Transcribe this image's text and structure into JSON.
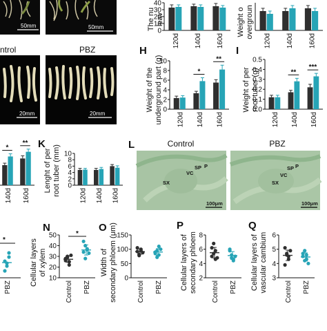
{
  "photos": {
    "top_scale_left": "50mm",
    "top_scale_right": "50mm",
    "left_label": "ntrol",
    "right_label": "PBZ",
    "bottom_scale_left": "20mm",
    "bottom_scale_right": "20mm"
  },
  "panels": {
    "top_left_chart": {
      "ylabel": [
        "The nu",
        "leav"
      ],
      "yticks": [
        "0",
        "10",
        "20",
        "30",
        "40"
      ],
      "xticks": [
        "120d",
        "140d",
        "160d"
      ]
    },
    "top_right_chart": {
      "ylabel": [
        "Weight o",
        "overgroun"
      ],
      "xticks": [
        "120d",
        "140d",
        "160d"
      ]
    },
    "H": {
      "letter": "H",
      "ylabel": [
        "Weight of the",
        "underground part (g)"
      ],
      "yticks": [
        "0",
        "2",
        "4",
        "6",
        "8",
        "10"
      ],
      "xticks": [
        "120d",
        "140d",
        "160d"
      ],
      "sig": [
        "*",
        "**"
      ]
    },
    "I": {
      "letter": "I",
      "ylabel": [
        "Weight of per",
        "root tuber (g)"
      ],
      "yticks": [
        "0.0",
        "0.1",
        "0.2",
        "0.3",
        "0.4",
        "0.5"
      ],
      "xticks": [
        "120d",
        "140d",
        "160d"
      ],
      "sig": [
        "**",
        "***"
      ]
    },
    "J_partial": {
      "xticks": [
        "140d",
        "160d"
      ],
      "sig": [
        "*",
        "**"
      ]
    },
    "K": {
      "letter": "K",
      "ylabel": [
        "Lenght of per",
        "root tuber (mm)"
      ],
      "yticks": [
        "0",
        "2",
        "4",
        "6",
        "8",
        "10"
      ],
      "xticks": [
        "120d",
        "140d",
        "160d"
      ]
    },
    "L": {
      "letter": "L",
      "left_title": "Control",
      "right_title": "PBZ",
      "labels_left": [
        "SX",
        "VC",
        "SP",
        "P"
      ],
      "labels_right": [
        "SX",
        "VC",
        "SP",
        "P"
      ],
      "scale_left": "100μm",
      "scale_right": "100μm"
    },
    "M_partial": {
      "sig": "*",
      "xtick": "PBZ"
    },
    "N": {
      "letter": "N",
      "ylabel": [
        "Cellular layers",
        "of xylem"
      ],
      "yticks": [
        "10",
        "20",
        "30",
        "40",
        "50"
      ],
      "xticks": [
        "Control",
        "PBZ"
      ],
      "sig": "*"
    },
    "O": {
      "letter": "O",
      "ylabel": [
        "Width of",
        "secondary phloem (μm)"
      ],
      "yticks": [
        "0",
        "50",
        "100",
        "150"
      ],
      "xticks": [
        "Control",
        "PBZ"
      ]
    },
    "P": {
      "letter": "P",
      "ylabel": [
        "Cellular layers of",
        "secondary phloem"
      ],
      "yticks": [
        "2",
        "4",
        "6",
        "8"
      ],
      "xticks": [
        "Control",
        "PBZ"
      ]
    },
    "Q": {
      "letter": "Q",
      "ylabel": [
        "Cellular layers of",
        "vascular cambium"
      ],
      "yticks": [
        "3",
        "4",
        "5",
        "6"
      ],
      "xticks": [
        "Control",
        "PBZ"
      ]
    }
  },
  "colors": {
    "control": "#2f2f2f",
    "pbz": "#27a4b6",
    "micro_bg": "#a9c7a4"
  },
  "chart_data": [
    {
      "type": "bar",
      "panel": "top_left",
      "categories": [
        "120d",
        "140d",
        "160d"
      ],
      "ylim": [
        0,
        40
      ],
      "series": [
        {
          "values": [
            33,
            35,
            35
          ],
          "err": [
            4,
            3,
            4
          ]
        },
        {
          "values": [
            34,
            34,
            33
          ],
          "err": [
            3,
            3,
            3
          ]
        }
      ]
    },
    {
      "type": "bar",
      "panel": "top_right",
      "categories": [
        "120d",
        "140d",
        "160d"
      ],
      "series": [
        {
          "values": [
            7,
            7,
            8
          ],
          "err": [
            1,
            1,
            1
          ]
        },
        {
          "values": [
            6,
            8,
            7
          ],
          "err": [
            1,
            1,
            1
          ]
        }
      ]
    },
    {
      "type": "bar",
      "panel": "H",
      "categories": [
        "120d",
        "140d",
        "160d"
      ],
      "ylim": [
        0,
        10
      ],
      "series": [
        {
          "values": [
            2.3,
            3.3,
            5.5
          ],
          "err": [
            0.4,
            0.4,
            0.6
          ]
        },
        {
          "values": [
            2.4,
            5.8,
            8.2
          ],
          "err": [
            0.4,
            0.7,
            0.9
          ]
        }
      ]
    },
    {
      "type": "bar",
      "panel": "I",
      "categories": [
        "120d",
        "140d",
        "160d"
      ],
      "ylim": [
        0,
        0.5
      ],
      "series": [
        {
          "values": [
            0.12,
            0.17,
            0.22
          ],
          "err": [
            0.02,
            0.02,
            0.03
          ]
        },
        {
          "values": [
            0.12,
            0.28,
            0.33
          ],
          "err": [
            0.02,
            0.03,
            0.03
          ]
        }
      ]
    },
    {
      "type": "bar",
      "panel": "J",
      "categories": [
        "140d",
        "160d"
      ],
      "series": [
        {
          "values": [
            3.0,
            4.0
          ],
          "err": [
            0.3,
            0.4
          ]
        },
        {
          "values": [
            4.3,
            5.0
          ],
          "err": [
            0.4,
            0.4
          ]
        }
      ]
    },
    {
      "type": "bar",
      "panel": "K",
      "categories": [
        "120d",
        "140d",
        "160d"
      ],
      "ylim": [
        0,
        10
      ],
      "series": [
        {
          "values": [
            4.8,
            4.8,
            6.0
          ],
          "err": [
            0.5,
            0.5,
            0.5
          ]
        },
        {
          "values": [
            4.9,
            5.1,
            5.5
          ],
          "err": [
            0.4,
            0.5,
            0.6
          ]
        }
      ]
    },
    {
      "type": "scatter",
      "panel": "N",
      "categories": [
        "Control",
        "PBZ"
      ],
      "ylim": [
        10,
        50
      ],
      "groups": [
        [
          26,
          30,
          25,
          31,
          28,
          29,
          22
        ],
        [
          34,
          40,
          37,
          33,
          44,
          28,
          36
        ]
      ]
    },
    {
      "type": "scatter",
      "panel": "O",
      "categories": [
        "Control",
        "PBZ"
      ],
      "ylim": [
        0,
        150
      ],
      "groups": [
        [
          92,
          82,
          100,
          88,
          105,
          78,
          95
        ],
        [
          85,
          95,
          80,
          100,
          90,
          72,
          110
        ]
      ]
    },
    {
      "type": "scatter",
      "panel": "P",
      "categories": [
        "Control",
        "PBZ"
      ],
      "ylim": [
        2,
        8
      ],
      "groups": [
        [
          6.2,
          5.4,
          5.8,
          4.8,
          5.0,
          6.8,
          4.6
        ],
        [
          5.8,
          5.2,
          4.6,
          5.0,
          6.0,
          4.8,
          4.4
        ]
      ]
    },
    {
      "type": "scatter",
      "panel": "Q",
      "categories": [
        "Control",
        "PBZ"
      ],
      "ylim": [
        3,
        6
      ],
      "groups": [
        [
          5.1,
          4.6,
          4.3,
          4.9,
          3.9,
          4.7,
          4.5
        ],
        [
          4.7,
          4.2,
          4.6,
          4.0,
          4.5,
          4.9,
          4.3
        ]
      ]
    }
  ]
}
